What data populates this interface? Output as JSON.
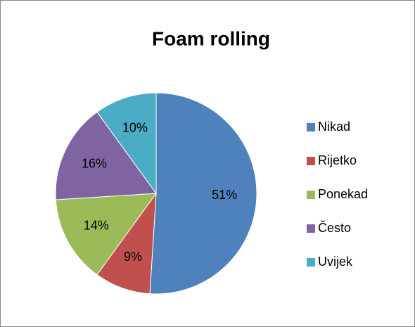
{
  "chart_data": {
    "type": "pie",
    "title": "Foam rolling",
    "categories": [
      "Nikad",
      "Rijetko",
      "Ponekad",
      "Često",
      "Uvijek"
    ],
    "values": [
      51,
      9,
      14,
      16,
      10
    ],
    "value_labels": [
      "51%",
      "9%",
      "14%",
      "16%",
      "10%"
    ],
    "colors": [
      "#4f81bd",
      "#c0504d",
      "#9bbb59",
      "#8064a2",
      "#4bacc6"
    ],
    "legend": "right"
  }
}
